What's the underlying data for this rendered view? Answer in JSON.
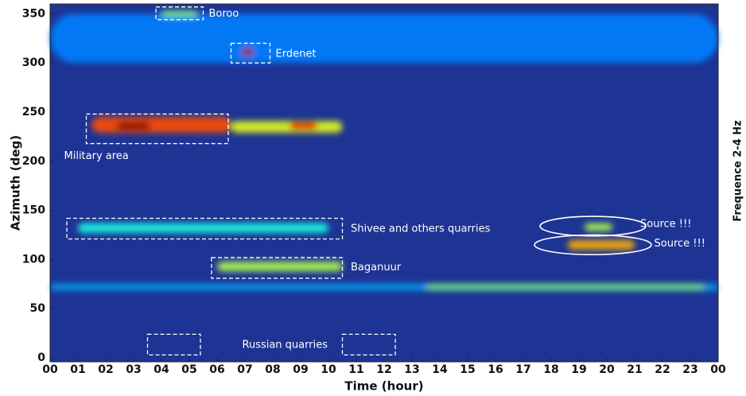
{
  "chart_data": {
    "type": "heatmap",
    "x_label": "Time (hour)",
    "y_label": "Azimuth (deg)",
    "side_label": "Frequence 2-4 Hz",
    "xlim": [
      0,
      24
    ],
    "ylim": [
      -4,
      360
    ],
    "xticks": [
      {
        "value": 0,
        "label": "00"
      },
      {
        "value": 1,
        "label": "01"
      },
      {
        "value": 2,
        "label": "02"
      },
      {
        "value": 3,
        "label": "03"
      },
      {
        "value": 4,
        "label": "04"
      },
      {
        "value": 5,
        "label": "05"
      },
      {
        "value": 6,
        "label": "06"
      },
      {
        "value": 7,
        "label": "07"
      },
      {
        "value": 8,
        "label": "08"
      },
      {
        "value": 9,
        "label": "09"
      },
      10,
      11,
      12,
      13,
      14,
      15,
      16,
      17,
      18,
      19,
      20,
      21,
      22,
      23,
      {
        "value": 24,
        "label": "00"
      }
    ],
    "yticks": [
      0,
      50,
      100,
      150,
      200,
      250,
      300,
      350
    ],
    "hotspots": [
      {
        "x": [
          0,
          24
        ],
        "y": 325,
        "h": 25,
        "intensity": 0.25
      },
      {
        "x": [
          0,
          24
        ],
        "y": 72,
        "h": 3,
        "intensity": 0.3
      },
      {
        "x": [
          1.5,
          6.5
        ],
        "y": 237,
        "h": 8,
        "intensity": 0.8
      },
      {
        "x": [
          2.4,
          3.6
        ],
        "y": 236,
        "h": 4,
        "intensity": 1.0
      },
      {
        "x": [
          6.5,
          10.5
        ],
        "y": 235,
        "h": 6,
        "intensity": 0.6
      },
      {
        "x": [
          8.6,
          9.6
        ],
        "y": 236,
        "h": 4,
        "intensity": 0.9
      },
      {
        "x": [
          6.9,
          7.3
        ],
        "y": 311,
        "h": 4,
        "intensity": 0.95
      },
      {
        "x": [
          4,
          5.3
        ],
        "y": 350,
        "h": 3,
        "intensity": 0.5
      },
      {
        "x": [
          1,
          10
        ],
        "y": 132,
        "h": 5,
        "intensity": 0.4
      },
      {
        "x": [
          6,
          10.5
        ],
        "y": 93,
        "h": 5,
        "intensity": 0.55
      },
      {
        "x": [
          13.5,
          23.5
        ],
        "y": 72,
        "h": 3,
        "intensity": 0.5
      },
      {
        "x": [
          18.6,
          21
        ],
        "y": 115,
        "h": 5,
        "intensity": 0.7
      },
      {
        "x": [
          19.2,
          20.2
        ],
        "y": 133,
        "h": 4,
        "intensity": 0.55
      }
    ],
    "boxes": [
      {
        "x": [
          3.8,
          5.5
        ],
        "y": [
          344,
          357
        ]
      },
      {
        "x": [
          6.5,
          7.9
        ],
        "y": [
          300,
          320
        ]
      },
      {
        "x": [
          1.3,
          6.4
        ],
        "y": [
          218,
          248
        ]
      },
      {
        "x": [
          0.6,
          10.5
        ],
        "y": [
          121,
          142
        ]
      },
      {
        "x": [
          5.8,
          10.5
        ],
        "y": [
          81,
          102
        ]
      },
      {
        "x": [
          3.5,
          5.4
        ],
        "y": [
          3,
          24
        ]
      },
      {
        "x": [
          10.5,
          12.4
        ],
        "y": [
          3,
          24
        ]
      }
    ],
    "ellipses": [
      {
        "x": 19.5,
        "y": 134,
        "rx": 1.9,
        "ry": 10
      },
      {
        "x": 19.5,
        "y": 115,
        "rx": 2.1,
        "ry": 10
      }
    ],
    "annotations": [
      {
        "text": "Boroo",
        "x": 5.7,
        "y": 350
      },
      {
        "text": "Erdenet",
        "x": 8.1,
        "y": 309
      },
      {
        "text": "Military area",
        "x": 0.5,
        "y": 205
      },
      {
        "text": "Shivee and others quarries",
        "x": 10.8,
        "y": 131
      },
      {
        "text": "Baganuur",
        "x": 10.8,
        "y": 92
      },
      {
        "text": "Russian quarries",
        "x": 6.9,
        "y": 13
      },
      {
        "text": "Source !!!",
        "x": 21.2,
        "y": 136
      },
      {
        "text": "Source !!!",
        "x": 21.7,
        "y": 116
      }
    ]
  }
}
